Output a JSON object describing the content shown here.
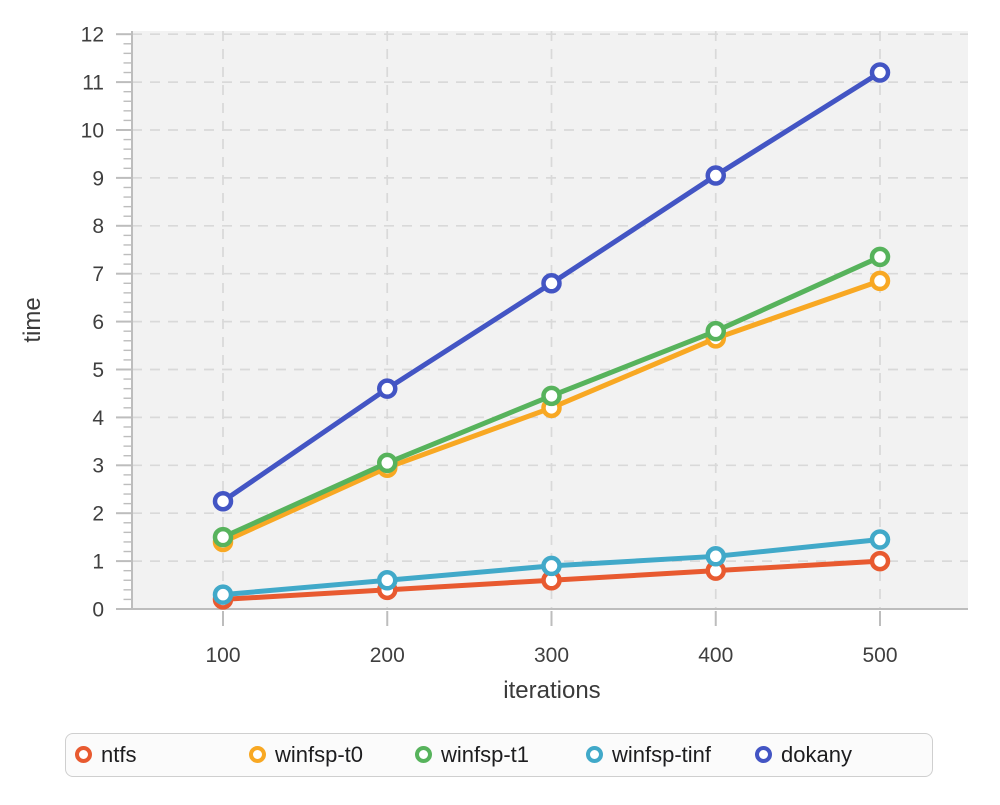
{
  "chart_data": {
    "type": "line",
    "title": "",
    "xlabel": "iterations",
    "ylabel": "time",
    "x": [
      100,
      200,
      300,
      400,
      500
    ],
    "xticks": [
      100,
      200,
      300,
      400,
      500
    ],
    "yticks": [
      0,
      1,
      2,
      3,
      4,
      5,
      6,
      7,
      8,
      9,
      10,
      11,
      12
    ],
    "ylim": [
      0,
      12
    ],
    "xlim_display": [
      45,
      553
    ],
    "grid": "dashed, horizontal and vertical",
    "minor_ticks_y_step": 0.2,
    "legend_position": "bottom",
    "marker": "open-circle",
    "series": [
      {
        "name": "ntfs",
        "color": "#E85A30",
        "values": [
          0.2,
          0.4,
          0.6,
          0.8,
          1.0
        ]
      },
      {
        "name": "winfsp-t0",
        "color": "#F8A823",
        "values": [
          1.4,
          2.95,
          4.2,
          5.65,
          6.85
        ]
      },
      {
        "name": "winfsp-t1",
        "color": "#57B35C",
        "values": [
          1.5,
          3.05,
          4.45,
          5.8,
          7.35
        ]
      },
      {
        "name": "winfsp-tinf",
        "color": "#41A9C9",
        "values": [
          0.3,
          0.6,
          0.9,
          1.1,
          1.45
        ]
      },
      {
        "name": "dokany",
        "color": "#4355C4",
        "values": [
          2.25,
          4.6,
          6.8,
          9.05,
          11.2
        ]
      }
    ],
    "colors": {
      "plot_background": "#f2f2f2",
      "grid_line": "#d9d9d9",
      "axis_line": "#bdbdbd",
      "tick_text": "#3f3f3f",
      "axis_label_text": "#3a3a3a",
      "marker_fill": "#ffffff"
    }
  },
  "legend": {
    "items": [
      "ntfs",
      "winfsp-t0",
      "winfsp-t1",
      "winfsp-tinf",
      "dokany"
    ]
  }
}
